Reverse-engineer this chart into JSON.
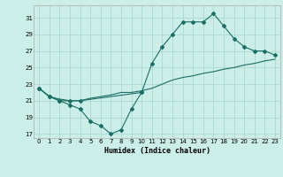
{
  "xlabel": "Humidex (Indice chaleur)",
  "bg_color": "#cceee8",
  "grid_color": "#aad8d0",
  "line_color": "#1a6e64",
  "xlim": [
    -0.5,
    23.5
  ],
  "ylim": [
    16.5,
    32.5
  ],
  "xticks": [
    0,
    1,
    2,
    3,
    4,
    5,
    6,
    7,
    8,
    9,
    10,
    11,
    12,
    13,
    14,
    15,
    16,
    17,
    18,
    19,
    20,
    21,
    22,
    23
  ],
  "yticks": [
    17,
    19,
    21,
    23,
    25,
    27,
    29,
    31
  ],
  "line1_x": [
    0,
    1,
    2,
    3,
    4,
    10,
    11,
    12,
    13,
    14,
    15,
    16,
    17,
    18,
    19,
    20,
    21,
    22,
    23
  ],
  "line1_y": [
    22.5,
    21.5,
    21,
    21,
    21,
    22,
    25.5,
    27.5,
    29,
    30.5,
    30.5,
    30.5,
    31.5,
    30,
    28.5,
    27.5,
    27,
    27,
    26.5
  ],
  "line2_x": [
    0,
    1,
    2,
    3,
    4,
    5,
    6,
    7,
    8,
    9,
    10
  ],
  "line2_y": [
    22.5,
    21.5,
    21,
    20.5,
    20,
    18.5,
    18,
    17,
    17.5,
    20.0,
    22
  ],
  "line3_x": [
    0,
    1,
    2,
    3,
    4,
    5,
    6,
    7,
    8,
    9,
    10,
    11,
    12,
    13,
    14,
    15,
    16,
    17,
    18,
    19,
    20,
    21,
    22,
    23
  ],
  "line3_y": [
    22.5,
    21.5,
    21.2,
    21.0,
    21.0,
    21.3,
    21.5,
    21.7,
    22.0,
    22.0,
    22.2,
    22.5,
    23.0,
    23.5,
    23.8,
    24.0,
    24.3,
    24.5,
    24.8,
    25.0,
    25.3,
    25.5,
    25.8,
    26.0
  ]
}
